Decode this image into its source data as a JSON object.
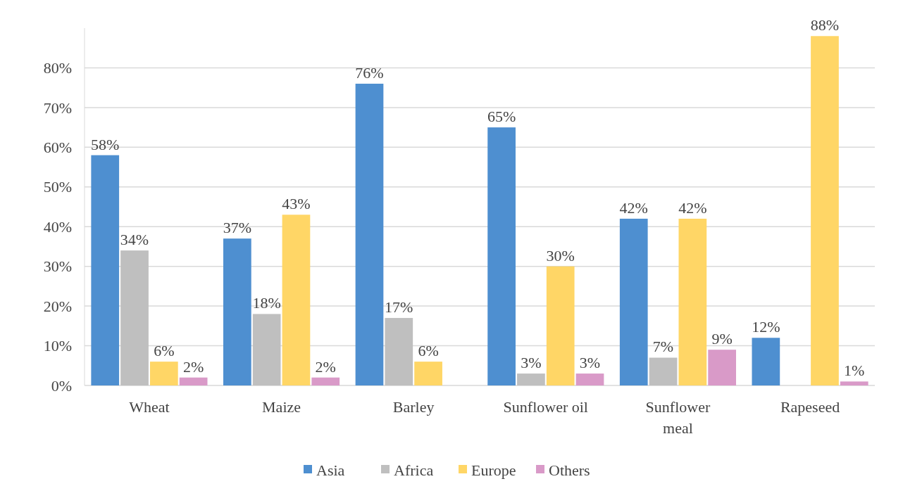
{
  "chart_data": {
    "type": "bar",
    "categories": [
      "Wheat",
      "Maize",
      "Barley",
      "Sunflower oil",
      "Sunflower meal",
      "Rapeseed"
    ],
    "series": [
      {
        "name": "Asia",
        "color": "#4e8fd0",
        "values": [
          58,
          37,
          76,
          65,
          42,
          12
        ],
        "value_labels": [
          "58%",
          "37%",
          "76%",
          "65%",
          "42%",
          "12%"
        ]
      },
      {
        "name": "Africa",
        "color": "#bfbfbf",
        "values": [
          34,
          18,
          17,
          3,
          7,
          null
        ],
        "value_labels": [
          "34%",
          "18%",
          "17%",
          "3%",
          "7%",
          null
        ]
      },
      {
        "name": "Europe",
        "color": "#ffd666",
        "values": [
          6,
          43,
          6,
          30,
          42,
          88
        ],
        "value_labels": [
          "6%",
          "43%",
          "6%",
          "30%",
          "42%",
          "88%"
        ]
      },
      {
        "name": "Others",
        "color": "#d99ac8",
        "values": [
          2,
          2,
          null,
          3,
          9,
          1
        ],
        "value_labels": [
          "2%",
          "2%",
          null,
          "3%",
          "9%",
          "1%"
        ]
      }
    ],
    "ylim": [
      0,
      90
    ],
    "yticks": [
      {
        "value": 0,
        "label": "0%"
      },
      {
        "value": 10,
        "label": "10%"
      },
      {
        "value": 20,
        "label": "20%"
      },
      {
        "value": 30,
        "label": "30%"
      },
      {
        "value": 40,
        "label": "40%"
      },
      {
        "value": 50,
        "label": "50%"
      },
      {
        "value": 60,
        "label": "60%"
      },
      {
        "value": 70,
        "label": "70%"
      },
      {
        "value": 80,
        "label": "80%"
      }
    ],
    "grid": "y",
    "legend": "bottom"
  }
}
